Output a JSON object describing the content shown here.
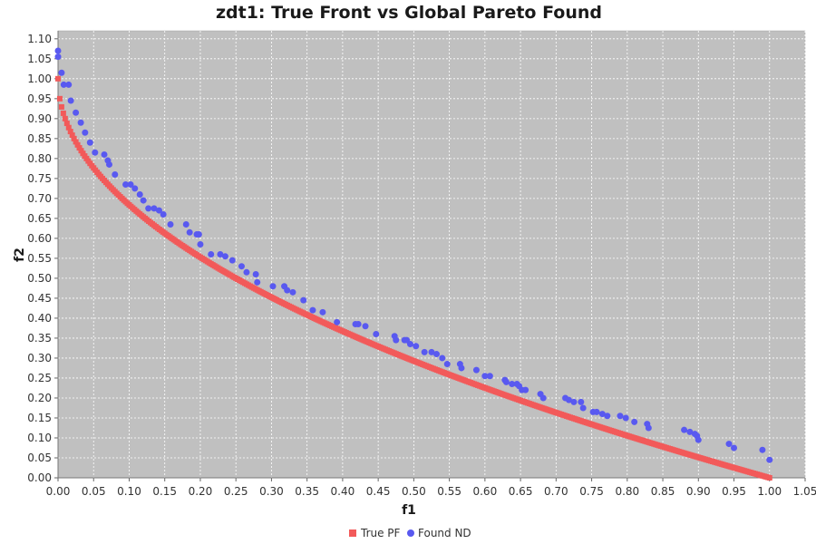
{
  "chart_data": {
    "type": "scatter",
    "title": "zdt1: True Front vs Global Pareto Found",
    "xlabel": "f1",
    "ylabel": "f2",
    "xlim": [
      0.0,
      1.05
    ],
    "ylim": [
      0.0,
      1.12
    ],
    "x_ticks": [
      "0.00",
      "0.05",
      "0.10",
      "0.15",
      "0.20",
      "0.25",
      "0.30",
      "0.35",
      "0.40",
      "0.45",
      "0.50",
      "0.55",
      "0.60",
      "0.65",
      "0.70",
      "0.75",
      "0.80",
      "0.85",
      "0.90",
      "0.95",
      "1.00",
      "1.05"
    ],
    "y_ticks": [
      "0.00",
      "0.05",
      "0.10",
      "0.15",
      "0.20",
      "0.25",
      "0.30",
      "0.35",
      "0.40",
      "0.45",
      "0.50",
      "0.55",
      "0.60",
      "0.65",
      "0.70",
      "0.75",
      "0.80",
      "0.85",
      "0.90",
      "0.95",
      "1.00",
      "1.05",
      "1.10"
    ],
    "grid": true,
    "legend_position": "bottom",
    "plot_background": "#c0c0c0",
    "series": [
      {
        "name": "True PF",
        "color": "#f25a5a",
        "marker": "square",
        "function": "f2 = 1 - sqrt(f1)",
        "x": [
          0.0,
          1.0
        ]
      },
      {
        "name": "Found ND",
        "color": "#5959f0",
        "marker": "circle",
        "points": [
          [
            0.0,
            1.07
          ],
          [
            0.0,
            1.055
          ],
          [
            0.005,
            1.015
          ],
          [
            0.008,
            0.985
          ],
          [
            0.015,
            0.985
          ],
          [
            0.018,
            0.945
          ],
          [
            0.025,
            0.915
          ],
          [
            0.032,
            0.89
          ],
          [
            0.038,
            0.865
          ],
          [
            0.045,
            0.84
          ],
          [
            0.052,
            0.815
          ],
          [
            0.065,
            0.81
          ],
          [
            0.07,
            0.795
          ],
          [
            0.072,
            0.785
          ],
          [
            0.08,
            0.76
          ],
          [
            0.095,
            0.735
          ],
          [
            0.102,
            0.735
          ],
          [
            0.108,
            0.725
          ],
          [
            0.115,
            0.71
          ],
          [
            0.12,
            0.695
          ],
          [
            0.127,
            0.675
          ],
          [
            0.135,
            0.675
          ],
          [
            0.142,
            0.67
          ],
          [
            0.148,
            0.66
          ],
          [
            0.158,
            0.635
          ],
          [
            0.18,
            0.635
          ],
          [
            0.185,
            0.615
          ],
          [
            0.195,
            0.61
          ],
          [
            0.198,
            0.61
          ],
          [
            0.2,
            0.585
          ],
          [
            0.215,
            0.56
          ],
          [
            0.228,
            0.56
          ],
          [
            0.235,
            0.555
          ],
          [
            0.245,
            0.545
          ],
          [
            0.258,
            0.53
          ],
          [
            0.265,
            0.515
          ],
          [
            0.278,
            0.51
          ],
          [
            0.28,
            0.49
          ],
          [
            0.302,
            0.48
          ],
          [
            0.318,
            0.48
          ],
          [
            0.322,
            0.47
          ],
          [
            0.33,
            0.465
          ],
          [
            0.345,
            0.445
          ],
          [
            0.358,
            0.42
          ],
          [
            0.372,
            0.415
          ],
          [
            0.392,
            0.39
          ],
          [
            0.418,
            0.385
          ],
          [
            0.422,
            0.385
          ],
          [
            0.432,
            0.38
          ],
          [
            0.447,
            0.36
          ],
          [
            0.473,
            0.355
          ],
          [
            0.475,
            0.345
          ],
          [
            0.487,
            0.345
          ],
          [
            0.49,
            0.345
          ],
          [
            0.495,
            0.335
          ],
          [
            0.503,
            0.33
          ],
          [
            0.515,
            0.315
          ],
          [
            0.525,
            0.315
          ],
          [
            0.532,
            0.31
          ],
          [
            0.54,
            0.3
          ],
          [
            0.547,
            0.285
          ],
          [
            0.565,
            0.285
          ],
          [
            0.567,
            0.275
          ],
          [
            0.588,
            0.27
          ],
          [
            0.6,
            0.255
          ],
          [
            0.607,
            0.255
          ],
          [
            0.628,
            0.245
          ],
          [
            0.63,
            0.24
          ],
          [
            0.638,
            0.235
          ],
          [
            0.645,
            0.235
          ],
          [
            0.648,
            0.23
          ],
          [
            0.652,
            0.22
          ],
          [
            0.657,
            0.22
          ],
          [
            0.678,
            0.21
          ],
          [
            0.682,
            0.2
          ],
          [
            0.713,
            0.2
          ],
          [
            0.718,
            0.195
          ],
          [
            0.725,
            0.19
          ],
          [
            0.735,
            0.19
          ],
          [
            0.738,
            0.175
          ],
          [
            0.752,
            0.165
          ],
          [
            0.757,
            0.165
          ],
          [
            0.765,
            0.16
          ],
          [
            0.772,
            0.155
          ],
          [
            0.79,
            0.155
          ],
          [
            0.798,
            0.15
          ],
          [
            0.81,
            0.14
          ],
          [
            0.828,
            0.135
          ],
          [
            0.83,
            0.125
          ],
          [
            0.88,
            0.12
          ],
          [
            0.888,
            0.115
          ],
          [
            0.895,
            0.11
          ],
          [
            0.898,
            0.105
          ],
          [
            0.9,
            0.095
          ],
          [
            0.943,
            0.085
          ],
          [
            0.95,
            0.075
          ],
          [
            0.99,
            0.07
          ],
          [
            1.0,
            0.045
          ]
        ]
      }
    ]
  }
}
